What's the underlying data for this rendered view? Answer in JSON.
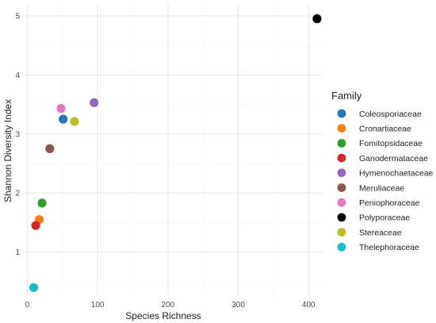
{
  "chart_data": {
    "type": "scatter",
    "xlabel": "Species Richness",
    "ylabel": "Shannon Diversity Index",
    "xlim": [
      -5,
      420
    ],
    "ylim": [
      0.27,
      5.2
    ],
    "xticks": [
      0,
      100,
      200,
      300,
      400
    ],
    "yticks": [
      1,
      2,
      3,
      4,
      5
    ],
    "grid": true,
    "legend": {
      "title": "Family",
      "placement": "right"
    },
    "series": [
      {
        "name": "Coleosporiaceae",
        "color": "#1f77b4",
        "points": [
          {
            "x": 51,
            "y": 3.25
          }
        ]
      },
      {
        "name": "Cronartiaceae",
        "color": "#ff7f0e",
        "points": [
          {
            "x": 17,
            "y": 1.55
          }
        ]
      },
      {
        "name": "Fomitopsidaceae",
        "color": "#2ca02c",
        "points": [
          {
            "x": 21,
            "y": 1.83
          }
        ]
      },
      {
        "name": "Ganodermataceae",
        "color": "#d62728",
        "points": [
          {
            "x": 12,
            "y": 1.45
          }
        ]
      },
      {
        "name": "Hymenochaetaceae",
        "color": "#9467bd",
        "points": [
          {
            "x": 95,
            "y": 3.53
          }
        ]
      },
      {
        "name": "Meruliaceae",
        "color": "#8c564b",
        "points": [
          {
            "x": 32,
            "y": 2.75
          }
        ]
      },
      {
        "name": "Peniophoraceae",
        "color": "#e377c2",
        "points": [
          {
            "x": 48,
            "y": 3.43
          }
        ]
      },
      {
        "name": "Polyporaceae",
        "color": "#000000",
        "points": [
          {
            "x": 412,
            "y": 4.95
          }
        ]
      },
      {
        "name": "Stereaceae",
        "color": "#bcbd22",
        "points": [
          {
            "x": 67,
            "y": 3.21
          }
        ]
      },
      {
        "name": "Thelephoraceae",
        "color": "#17becf",
        "points": [
          {
            "x": 9,
            "y": 0.4
          }
        ]
      }
    ]
  }
}
